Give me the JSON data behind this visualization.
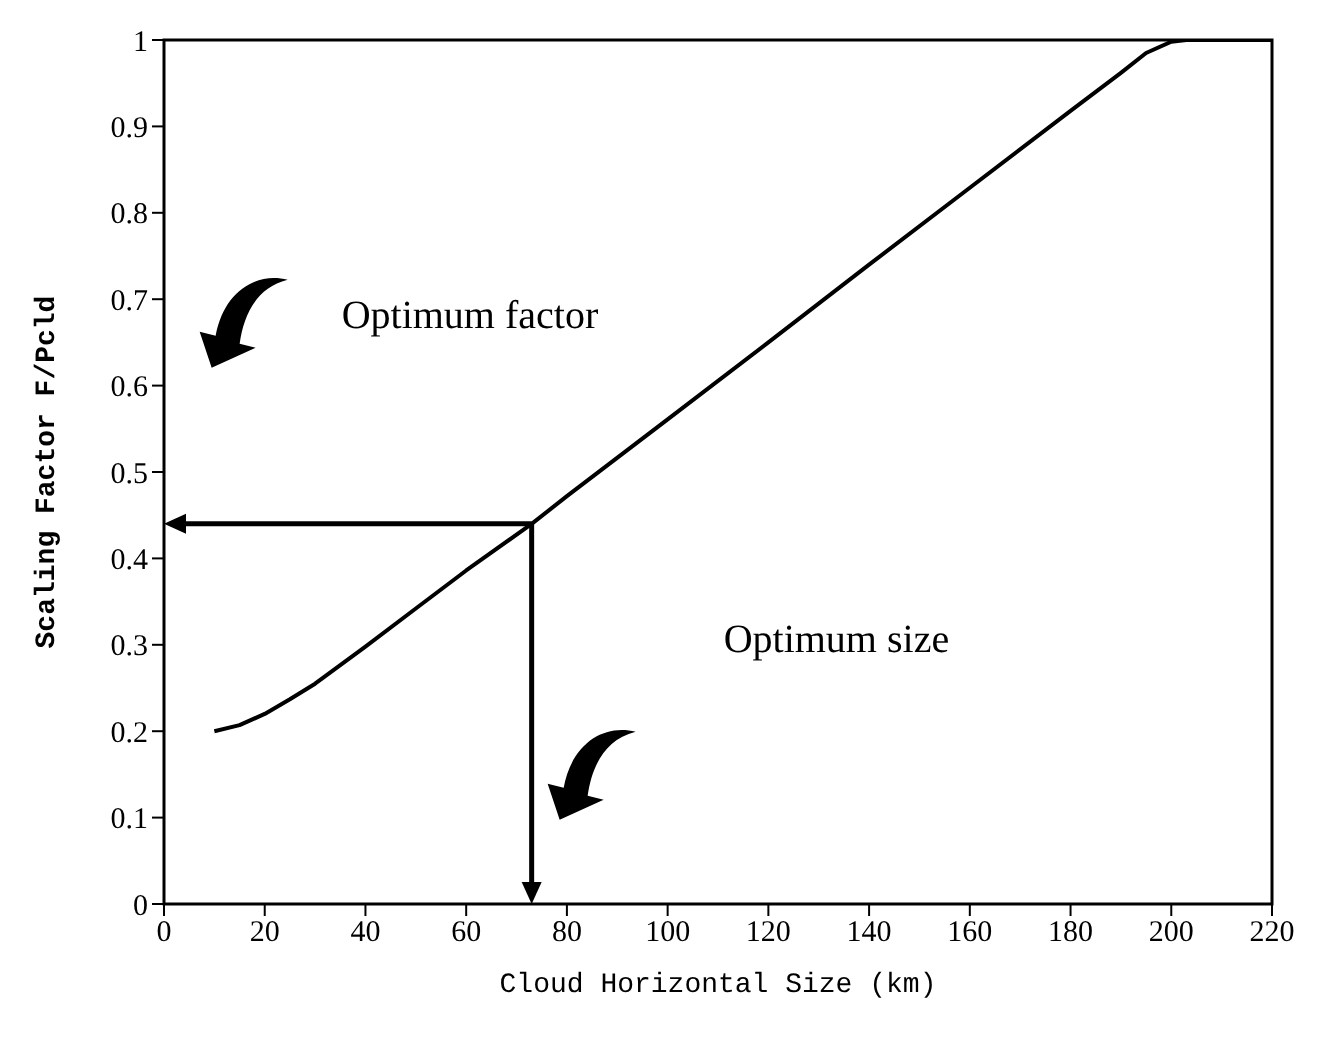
{
  "chart_data": {
    "type": "line",
    "xlabel": "Cloud Horizontal Size (km)",
    "ylabel": "Scaling Factor F/Pcld",
    "x": [
      10,
      15,
      20,
      25,
      30,
      40,
      50,
      60,
      73,
      80,
      100,
      120,
      140,
      160,
      180,
      190,
      195,
      200,
      203,
      207,
      210,
      220
    ],
    "series": [
      {
        "color": "#000000",
        "values": [
          0.2,
          0.207,
          0.22,
          0.237,
          0.255,
          0.298,
          0.342,
          0.386,
          0.44,
          0.472,
          0.561,
          0.65,
          0.74,
          0.829,
          0.918,
          0.962,
          0.985,
          0.998,
          1.0,
          1.0,
          1.0,
          1.0
        ]
      }
    ],
    "xlim": [
      0,
      220
    ],
    "xticks": [
      0,
      20,
      40,
      60,
      80,
      100,
      120,
      140,
      160,
      180,
      200,
      220
    ],
    "ylim": [
      0,
      1
    ],
    "yticks": [
      0,
      0.1,
      0.2,
      0.3,
      0.4,
      0.5,
      0.6,
      0.7,
      0.8,
      0.9,
      1
    ],
    "grid": false,
    "legend": false,
    "marker": "none",
    "line_style": "solid",
    "ref_lines": [
      {
        "axis": "y",
        "value": 0.44,
        "color": "#000000"
      },
      {
        "axis": "x",
        "value": 73,
        "color": "#000000"
      }
    ],
    "annotations": [
      "Optimum factor",
      "Optimum size"
    ]
  }
}
